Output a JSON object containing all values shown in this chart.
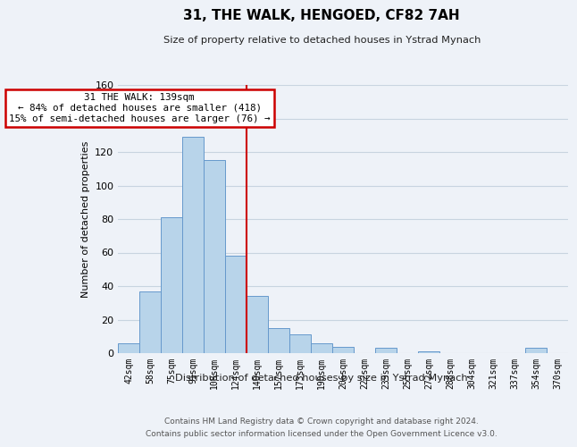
{
  "title": "31, THE WALK, HENGOED, CF82 7AH",
  "subtitle": "Size of property relative to detached houses in Ystrad Mynach",
  "xlabel": "Distribution of detached houses by size in Ystrad Mynach",
  "ylabel": "Number of detached properties",
  "bar_labels": [
    "42sqm",
    "58sqm",
    "75sqm",
    "91sqm",
    "108sqm",
    "124sqm",
    "140sqm",
    "157sqm",
    "173sqm",
    "190sqm",
    "206sqm",
    "222sqm",
    "239sqm",
    "255sqm",
    "272sqm",
    "288sqm",
    "304sqm",
    "321sqm",
    "337sqm",
    "354sqm",
    "370sqm"
  ],
  "bar_values": [
    6,
    37,
    81,
    129,
    115,
    58,
    34,
    15,
    11,
    6,
    4,
    0,
    3,
    0,
    1,
    0,
    0,
    0,
    0,
    3,
    0
  ],
  "bar_color": "#b8d4ea",
  "bar_edge_color": "#6699cc",
  "vline_x_idx": 6,
  "vline_color": "#cc0000",
  "ylim": [
    0,
    160
  ],
  "yticks": [
    0,
    20,
    40,
    60,
    80,
    100,
    120,
    140,
    160
  ],
  "annotation_title": "31 THE WALK: 139sqm",
  "annotation_line1": "← 84% of detached houses are smaller (418)",
  "annotation_line2": "15% of semi-detached houses are larger (76) →",
  "annotation_box_color": "#ffffff",
  "annotation_box_edge": "#cc0000",
  "footer1": "Contains HM Land Registry data © Crown copyright and database right 2024.",
  "footer2": "Contains public sector information licensed under the Open Government Licence v3.0.",
  "background_color": "#eef2f8",
  "grid_color": "#c8d4e0"
}
